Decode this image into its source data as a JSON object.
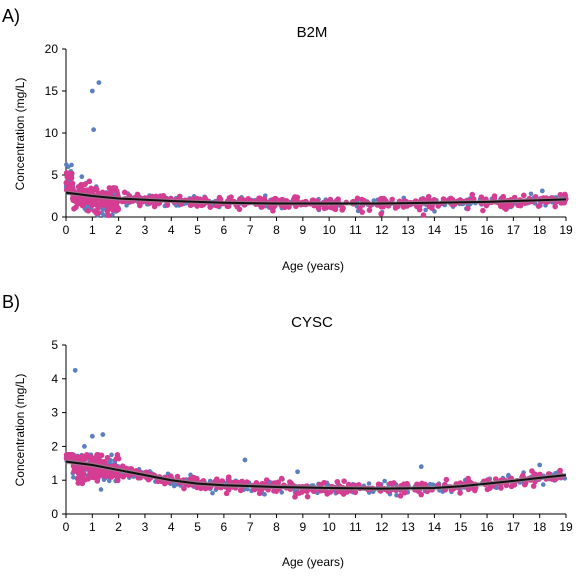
{
  "chart_data": [
    {
      "type": "scatter",
      "panel_label": "A)",
      "title": "B2M",
      "xlabel": "Age (years)",
      "ylabel": "Concentration (mg/L)",
      "xlim": [
        0,
        19
      ],
      "ylim": [
        0,
        20
      ],
      "xticks": [
        0,
        1,
        2,
        3,
        4,
        5,
        6,
        7,
        8,
        9,
        10,
        11,
        12,
        13,
        14,
        15,
        16,
        17,
        18,
        19
      ],
      "yticks": [
        0,
        5,
        10,
        15,
        20
      ],
      "grid": false,
      "series_colors": {
        "blue": "#5b7fc0",
        "pink": "#d43d92",
        "fit": "#111111",
        "band": "#8a8a8a"
      },
      "outliers_blue": [
        [
          1.0,
          15.0
        ],
        [
          1.25,
          16.0
        ],
        [
          1.05,
          10.4
        ],
        [
          0.6,
          4.8
        ],
        [
          18.1,
          3.1
        ]
      ],
      "fit": [
        [
          0,
          2.9
        ],
        [
          1,
          2.5
        ],
        [
          2,
          2.2
        ],
        [
          4,
          1.9
        ],
        [
          6,
          1.7
        ],
        [
          8,
          1.6
        ],
        [
          10,
          1.6
        ],
        [
          12,
          1.6
        ],
        [
          14,
          1.7
        ],
        [
          16,
          1.8
        ],
        [
          18,
          2.0
        ],
        [
          19,
          2.1
        ]
      ],
      "band_width": 0.5
    },
    {
      "type": "scatter",
      "panel_label": "B)",
      "title": "CYSC",
      "xlabel": "Age (years)",
      "ylabel": "Concentration (mg/L)",
      "xlim": [
        0,
        19
      ],
      "ylim": [
        0,
        5
      ],
      "xticks": [
        0,
        1,
        2,
        3,
        4,
        5,
        6,
        7,
        8,
        9,
        10,
        11,
        12,
        13,
        14,
        15,
        16,
        17,
        18,
        19
      ],
      "yticks": [
        0,
        1,
        2,
        3,
        4,
        5
      ],
      "grid": false,
      "series_colors": {
        "blue": "#5b7fc0",
        "pink": "#d43d92",
        "fit": "#111111",
        "band": "#8a8a8a"
      },
      "outliers_blue": [
        [
          0.35,
          4.25
        ],
        [
          1.0,
          2.3
        ],
        [
          1.4,
          2.35
        ],
        [
          0.7,
          2.0
        ],
        [
          6.8,
          1.6
        ],
        [
          8.8,
          1.25
        ],
        [
          18.0,
          1.45
        ],
        [
          13.5,
          1.4
        ]
      ],
      "fit": [
        [
          0,
          1.55
        ],
        [
          1,
          1.45
        ],
        [
          2,
          1.3
        ],
        [
          3,
          1.15
        ],
        [
          4,
          1.0
        ],
        [
          5,
          0.9
        ],
        [
          6,
          0.85
        ],
        [
          8,
          0.8
        ],
        [
          10,
          0.77
        ],
        [
          12,
          0.75
        ],
        [
          14,
          0.77
        ],
        [
          15,
          0.82
        ],
        [
          16,
          0.9
        ],
        [
          17,
          0.98
        ],
        [
          18,
          1.07
        ],
        [
          19,
          1.15
        ]
      ],
      "band_width": 0.14
    }
  ]
}
